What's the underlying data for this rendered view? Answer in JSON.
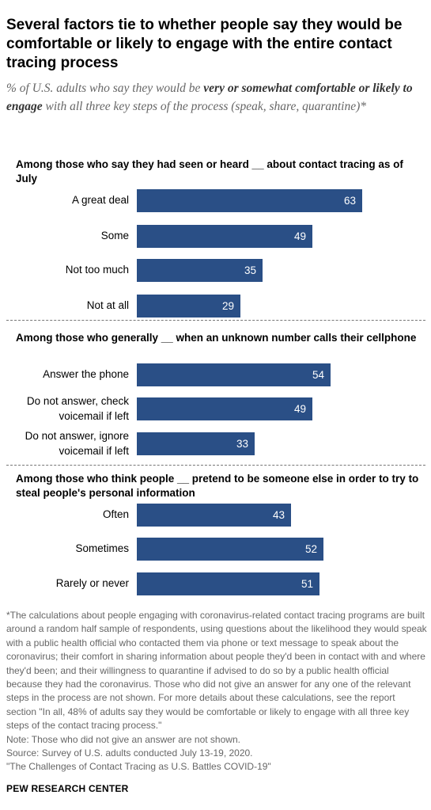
{
  "header": {
    "title": "Several factors tie to whether people say they would be comfortable or likely to engage with the entire contact tracing process",
    "subtitle_before": "% of U.S. adults who say they would be ",
    "subtitle_emphasis": "very or somewhat comfortable or likely to engage",
    "subtitle_after": " with all three key steps of the process (speak, share, quarantine)*"
  },
  "chart_data": [
    {
      "type": "bar",
      "orientation": "horizontal",
      "title": "Among those who say they had seen or heard __ about contact tracing as of July",
      "categories": [
        "A great deal",
        "Some",
        "Not too much",
        "Not at all"
      ],
      "values": [
        63,
        49,
        35,
        29
      ],
      "color": "#2a4f86"
    },
    {
      "type": "bar",
      "orientation": "horizontal",
      "title": "Among those who generally __ when an unknown number calls their cellphone",
      "categories": [
        "Answer the phone",
        "Do not answer, check voicemail if left",
        "Do not answer, ignore voicemail if left"
      ],
      "values": [
        54,
        49,
        33
      ],
      "color": "#2a4f86"
    },
    {
      "type": "bar",
      "orientation": "horizontal",
      "title": "Among those who think people __ pretend to be someone else in order to try to steal people's personal information",
      "categories": [
        "Often",
        "Sometimes",
        "Rarely or never"
      ],
      "values": [
        43,
        52,
        51
      ],
      "color": "#2a4f86"
    }
  ],
  "footnotes": {
    "asterisk_note": "*The calculations about people engaging with coronavirus-related contact tracing programs are built around a random half sample of respondents, using questions about the likelihood they would speak with a public health official who contacted them via phone or text message to speak about the coronavirus; their comfort in sharing information about people they'd been in contact with and where they'd been; and their willingness to quarantine if advised to do so by a public health official because they had the coronavirus. Those who did not give an answer for any one of the relevant steps in the process are not shown. For more details about these calculations, see the report section \"In all, 48% of adults say they would be comfortable or likely to engage with all three key steps of the contact tracing process.\"",
    "note": "Note: Those who did not give an answer are not shown.",
    "source": "Source: Survey of U.S. adults conducted July 13-19, 2020.",
    "report": "\"The Challenges of Contact Tracing as U.S. Battles COVID-19\""
  },
  "brand": "PEW RESEARCH CENTER"
}
